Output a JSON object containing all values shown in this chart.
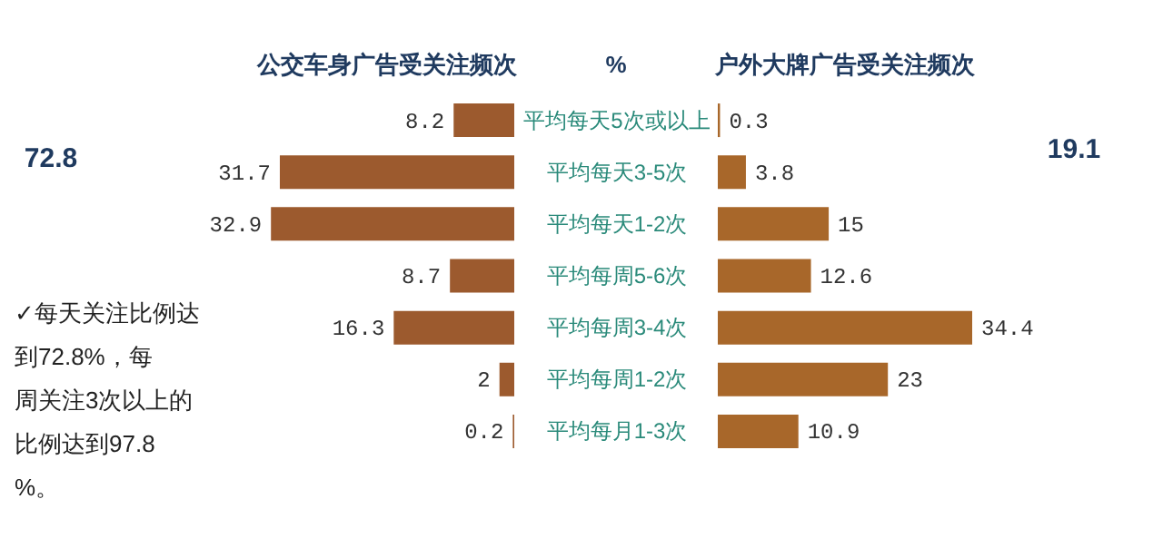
{
  "chart_data": [
    {
      "type": "bar",
      "orientation": "horizontal",
      "data_labels": true,
      "tick_labels": "y",
      "title": "公交车身广告受关注频次",
      "categories": [
        "平均每天5次或以上",
        "平均每天3-5次",
        "平均每天1-2次",
        "平均每周5-6次",
        "平均每周3-4次",
        "平均每周1-2次",
        "平均每月1-3次"
      ],
      "values": [
        8.2,
        31.7,
        32.9,
        8.7,
        16.3,
        2,
        0.2
      ],
      "color": "#9c5a2e",
      "annotations": [
        "%",
        "72.8",
        "✓每天关注比例达到72.8%，每周关注3次以上的比例达到97.8%。"
      ]
    },
    {
      "type": "bar",
      "orientation": "horizontal",
      "data_labels": true,
      "tick_labels": false,
      "title": "户外大牌广告受关注频次",
      "values": [
        0.3,
        3.8,
        15,
        12.6,
        34.4,
        23,
        10.9
      ],
      "color": "#a8672a",
      "annotations": [
        "19.1"
      ]
    }
  ]
}
